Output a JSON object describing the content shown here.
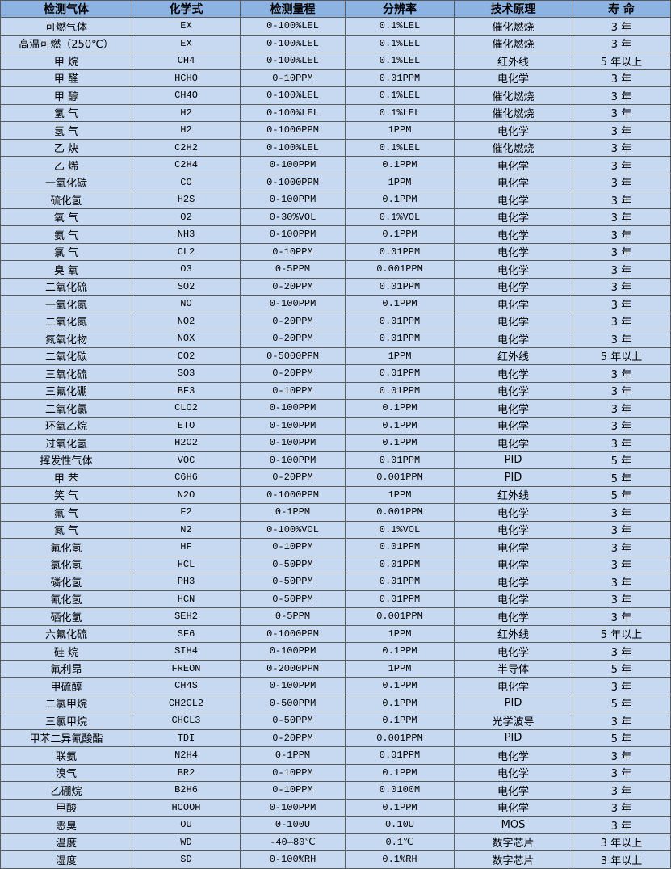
{
  "headers": [
    "检测气体",
    "化学式",
    "检测量程",
    "分辨率",
    "技术原理",
    "寿 命"
  ],
  "rows": [
    [
      "可燃气体",
      "EX",
      "0-100%LEL",
      "0.1%LEL",
      "催化燃烧",
      "3 年"
    ],
    [
      "高温可燃（250℃）",
      "EX",
      "0-100%LEL",
      "0.1%LEL",
      "催化燃烧",
      "3 年"
    ],
    [
      "甲 烷",
      "CH4",
      "0-100%LEL",
      "0.1%LEL",
      "红外线",
      "5 年以上"
    ],
    [
      "甲 醛",
      "HCHO",
      "0-10PPM",
      "0.01PPM",
      "电化学",
      "3 年"
    ],
    [
      "甲 醇",
      "CH4O",
      "0-100%LEL",
      "0.1%LEL",
      "催化燃烧",
      "3 年"
    ],
    [
      "氢 气",
      "H2",
      "0-100%LEL",
      "0.1%LEL",
      "催化燃烧",
      "3 年"
    ],
    [
      "氢 气",
      "H2",
      "0-1000PPM",
      "1PPM",
      "电化学",
      "3 年"
    ],
    [
      "乙 炔",
      "C2H2",
      "0-100%LEL",
      "0.1%LEL",
      "催化燃烧",
      "3 年"
    ],
    [
      "乙 烯",
      "C2H4",
      "0-100PPM",
      "0.1PPM",
      "电化学",
      "3 年"
    ],
    [
      "一氧化碳",
      "CO",
      "0-1000PPM",
      "1PPM",
      "电化学",
      "3 年"
    ],
    [
      "硫化氢",
      "H2S",
      "0-100PPM",
      "0.1PPM",
      "电化学",
      "3 年"
    ],
    [
      "氧 气",
      "O2",
      "0-30%VOL",
      "0.1%VOL",
      "电化学",
      "3 年"
    ],
    [
      "氨 气",
      "NH3",
      "0-100PPM",
      "0.1PPM",
      "电化学",
      "3 年"
    ],
    [
      "氯 气",
      "CL2",
      "0-10PPM",
      "0.01PPM",
      "电化学",
      "3 年"
    ],
    [
      "臭 氧",
      "O3",
      "0-5PPM",
      "0.001PPM",
      "电化学",
      "3 年"
    ],
    [
      "二氧化硫",
      "SO2",
      "0-20PPM",
      "0.01PPM",
      "电化学",
      "3 年"
    ],
    [
      "一氧化氮",
      "NO",
      "0-100PPM",
      "0.1PPM",
      "电化学",
      "3 年"
    ],
    [
      "二氧化氮",
      "NO2",
      "0-20PPM",
      "0.01PPM",
      "电化学",
      "3 年"
    ],
    [
      "氮氧化物",
      "NOX",
      "0-20PPM",
      "0.01PPM",
      "电化学",
      "3 年"
    ],
    [
      "二氧化碳",
      "CO2",
      "0-5000PPM",
      "1PPM",
      "红外线",
      "5 年以上"
    ],
    [
      "三氧化硫",
      "SO3",
      "0-20PPM",
      "0.01PPM",
      "电化学",
      "3 年"
    ],
    [
      "三氟化硼",
      "BF3",
      "0-10PPM",
      "0.01PPM",
      "电化学",
      "3 年"
    ],
    [
      "二氧化氯",
      "CLO2",
      "0-100PPM",
      "0.1PPM",
      "电化学",
      "3 年"
    ],
    [
      "环氧乙烷",
      "ETO",
      "0-100PPM",
      "0.1PPM",
      "电化学",
      "3 年"
    ],
    [
      "过氧化氢",
      "H2O2",
      "0-100PPM",
      "0.1PPM",
      "电化学",
      "3 年"
    ],
    [
      "挥发性气体",
      "VOC",
      "0-100PPM",
      "0.01PPM",
      "PID",
      "5 年"
    ],
    [
      "甲 苯",
      "C6H6",
      "0-20PPM",
      "0.001PPM",
      "PID",
      "5 年"
    ],
    [
      "笑 气",
      "N2O",
      "0-1000PPM",
      "1PPM",
      "红外线",
      "5 年"
    ],
    [
      "氟 气",
      "F2",
      "0-1PPM",
      "0.001PPM",
      "电化学",
      "3 年"
    ],
    [
      "氮 气",
      "N2",
      "0-100%VOL",
      "0.1%VOL",
      "电化学",
      "3 年"
    ],
    [
      "氟化氢",
      "HF",
      "0-10PPM",
      "0.01PPM",
      "电化学",
      "3 年"
    ],
    [
      "氯化氢",
      "HCL",
      "0-50PPM",
      "0.01PPM",
      "电化学",
      "3 年"
    ],
    [
      "磷化氢",
      "PH3",
      "0-50PPM",
      "0.01PPM",
      "电化学",
      "3 年"
    ],
    [
      "氰化氢",
      "HCN",
      "0-50PPM",
      "0.01PPM",
      "电化学",
      "3 年"
    ],
    [
      "硒化氢",
      "SEH2",
      "0-5PPM",
      "0.001PPM",
      "电化学",
      "3 年"
    ],
    [
      "六氟化硫",
      "SF6",
      "0-1000PPM",
      "1PPM",
      "红外线",
      "5 年以上"
    ],
    [
      "硅 烷",
      "SIH4",
      "0-100PPM",
      "0.1PPM",
      "电化学",
      "3 年"
    ],
    [
      "氟利昂",
      "FREON",
      "0-2000PPM",
      "1PPM",
      "半导体",
      "5 年"
    ],
    [
      "甲硫醇",
      "CH4S",
      "0-100PPM",
      "0.1PPM",
      "电化学",
      "3 年"
    ],
    [
      "二氯甲烷",
      "CH2CL2",
      "0-500PPM",
      "0.1PPM",
      "PID",
      "5 年"
    ],
    [
      "三氯甲烷",
      "CHCL3",
      "0-50PPM",
      "0.1PPM",
      "光学波导",
      "3 年"
    ],
    [
      "甲苯二异氰酸酯",
      "TDI",
      "0-20PPM",
      "0.001PPM",
      "PID",
      "5 年"
    ],
    [
      "联氨",
      "N2H4",
      "0-1PPM",
      "0.01PPM",
      "电化学",
      "3 年"
    ],
    [
      "溴气",
      "BR2",
      "0-10PPM",
      "0.1PPM",
      "电化学",
      "3 年"
    ],
    [
      "乙硼烷",
      "B2H6",
      "0-10PPM",
      "0.0100M",
      "电化学",
      "3 年"
    ],
    [
      "甲酸",
      "HCOOH",
      "0-100PPM",
      "0.1PPM",
      "电化学",
      "3 年"
    ],
    [
      "恶臭",
      "OU",
      "0-100U",
      "0.10U",
      "MOS",
      "3 年"
    ],
    [
      "温度",
      "WD",
      "-40—80℃",
      "0.1℃",
      "数字芯片",
      "3 年以上"
    ],
    [
      "湿度",
      "SD",
      "0-100%RH",
      "0.1%RH",
      "数字芯片",
      "3 年以上"
    ]
  ],
  "colors": {
    "header_bg": "#8db3e2",
    "row_bg": "#c6d9f1",
    "border": "#5a5a5a"
  }
}
